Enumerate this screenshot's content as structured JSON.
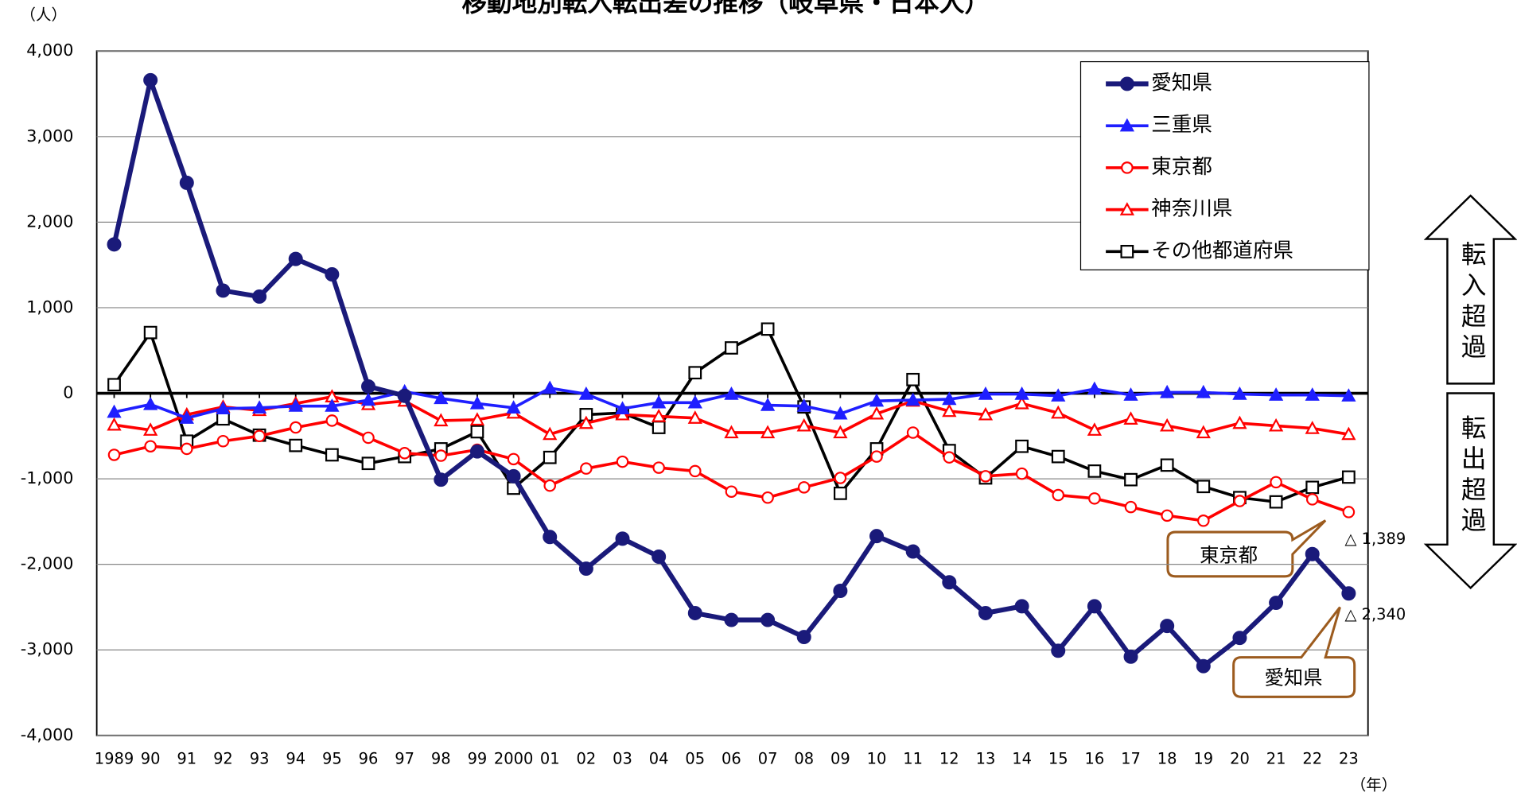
{
  "chart_data": {
    "type": "line",
    "title": "移動地別転入転出差の推移（岐阜県・日本人）",
    "y_unit": "（人）",
    "x_unit": "（年）",
    "categories": [
      "1989",
      "90",
      "91",
      "92",
      "93",
      "94",
      "95",
      "96",
      "97",
      "98",
      "99",
      "2000",
      "01",
      "02",
      "03",
      "04",
      "05",
      "06",
      "07",
      "08",
      "09",
      "10",
      "11",
      "12",
      "13",
      "14",
      "15",
      "16",
      "17",
      "18",
      "19",
      "20",
      "21",
      "22",
      "23"
    ],
    "ylim": [
      -4000,
      4000
    ],
    "yticks": [
      {
        "value": -4000,
        "label": "-4,000"
      },
      {
        "value": -3000,
        "label": "-3,000"
      },
      {
        "value": -2000,
        "label": "-2,000"
      },
      {
        "value": -1000,
        "label": "-1,000"
      },
      0,
      {
        "value": 1000,
        "label": "1,000"
      },
      {
        "value": 2000,
        "label": "2,000"
      },
      {
        "value": 3000,
        "label": "3,000"
      },
      {
        "value": 4000,
        "label": "4,000"
      }
    ],
    "grid": true,
    "legend": "top-right",
    "series": [
      {
        "name": "愛知県",
        "color": "#1a1a7a",
        "marker": "circle",
        "filled": true,
        "values": [
          1740,
          3660,
          2460,
          1200,
          1130,
          1570,
          1390,
          80,
          -30,
          -1010,
          -680,
          -970,
          -1680,
          -2050,
          -1700,
          -1910,
          -2570,
          -2650,
          -2650,
          -2850,
          -2310,
          -1670,
          -1850,
          -2210,
          -2570,
          -2490,
          -3010,
          -2490,
          -3080,
          -2720,
          -3190,
          -2860,
          -2450,
          -1880,
          -2340
        ]
      },
      {
        "name": "三重県",
        "color": "#1f1fff",
        "marker": "triangle",
        "filled": true,
        "values": [
          -220,
          -130,
          -290,
          -180,
          -170,
          -150,
          -150,
          -80,
          20,
          -60,
          -120,
          -170,
          60,
          -10,
          -180,
          -110,
          -110,
          -10,
          -140,
          -150,
          -240,
          -90,
          -80,
          -70,
          -10,
          -10,
          -30,
          50,
          -20,
          10,
          10,
          -10,
          -20,
          -20,
          -30
        ]
      },
      {
        "name": "東京都",
        "color": "#ff0000",
        "marker": "circle",
        "filled": false,
        "values": [
          -720,
          -620,
          -650,
          -560,
          -500,
          -400,
          -320,
          -520,
          -700,
          -730,
          -660,
          -770,
          -1080,
          -880,
          -800,
          -870,
          -910,
          -1150,
          -1220,
          -1100,
          -990,
          -740,
          -460,
          -750,
          -970,
          -940,
          -1190,
          -1230,
          -1330,
          -1430,
          -1490,
          -1260,
          -1040,
          -1240,
          -1389
        ]
      },
      {
        "name": "神奈川県",
        "color": "#ff0000",
        "marker": "triangle",
        "filled": false,
        "values": [
          -370,
          -430,
          -250,
          -160,
          -200,
          -120,
          -40,
          -130,
          -90,
          -320,
          -310,
          -230,
          -480,
          -350,
          -250,
          -270,
          -290,
          -460,
          -460,
          -380,
          -460,
          -240,
          -90,
          -210,
          -250,
          -120,
          -230,
          -430,
          -300,
          -380,
          -460,
          -350,
          -380,
          -410,
          -480
        ]
      },
      {
        "name": "その他都道府県",
        "color": "#000000",
        "marker": "square",
        "filled": false,
        "values": [
          100,
          710,
          -560,
          -300,
          -490,
          -610,
          -720,
          -820,
          -740,
          -650,
          -450,
          -1110,
          -750,
          -250,
          -230,
          -400,
          240,
          530,
          750,
          -160,
          -1170,
          -650,
          160,
          -670,
          -990,
          -620,
          -740,
          -910,
          -1010,
          -840,
          -1090,
          -1220,
          -1270,
          -1100,
          -980
        ]
      }
    ],
    "annotations": [
      "東京都",
      "愛知県",
      "△ 1,389",
      "△ 2,340"
    ],
    "side_labels": [
      "転入超過",
      "転出超過"
    ]
  }
}
